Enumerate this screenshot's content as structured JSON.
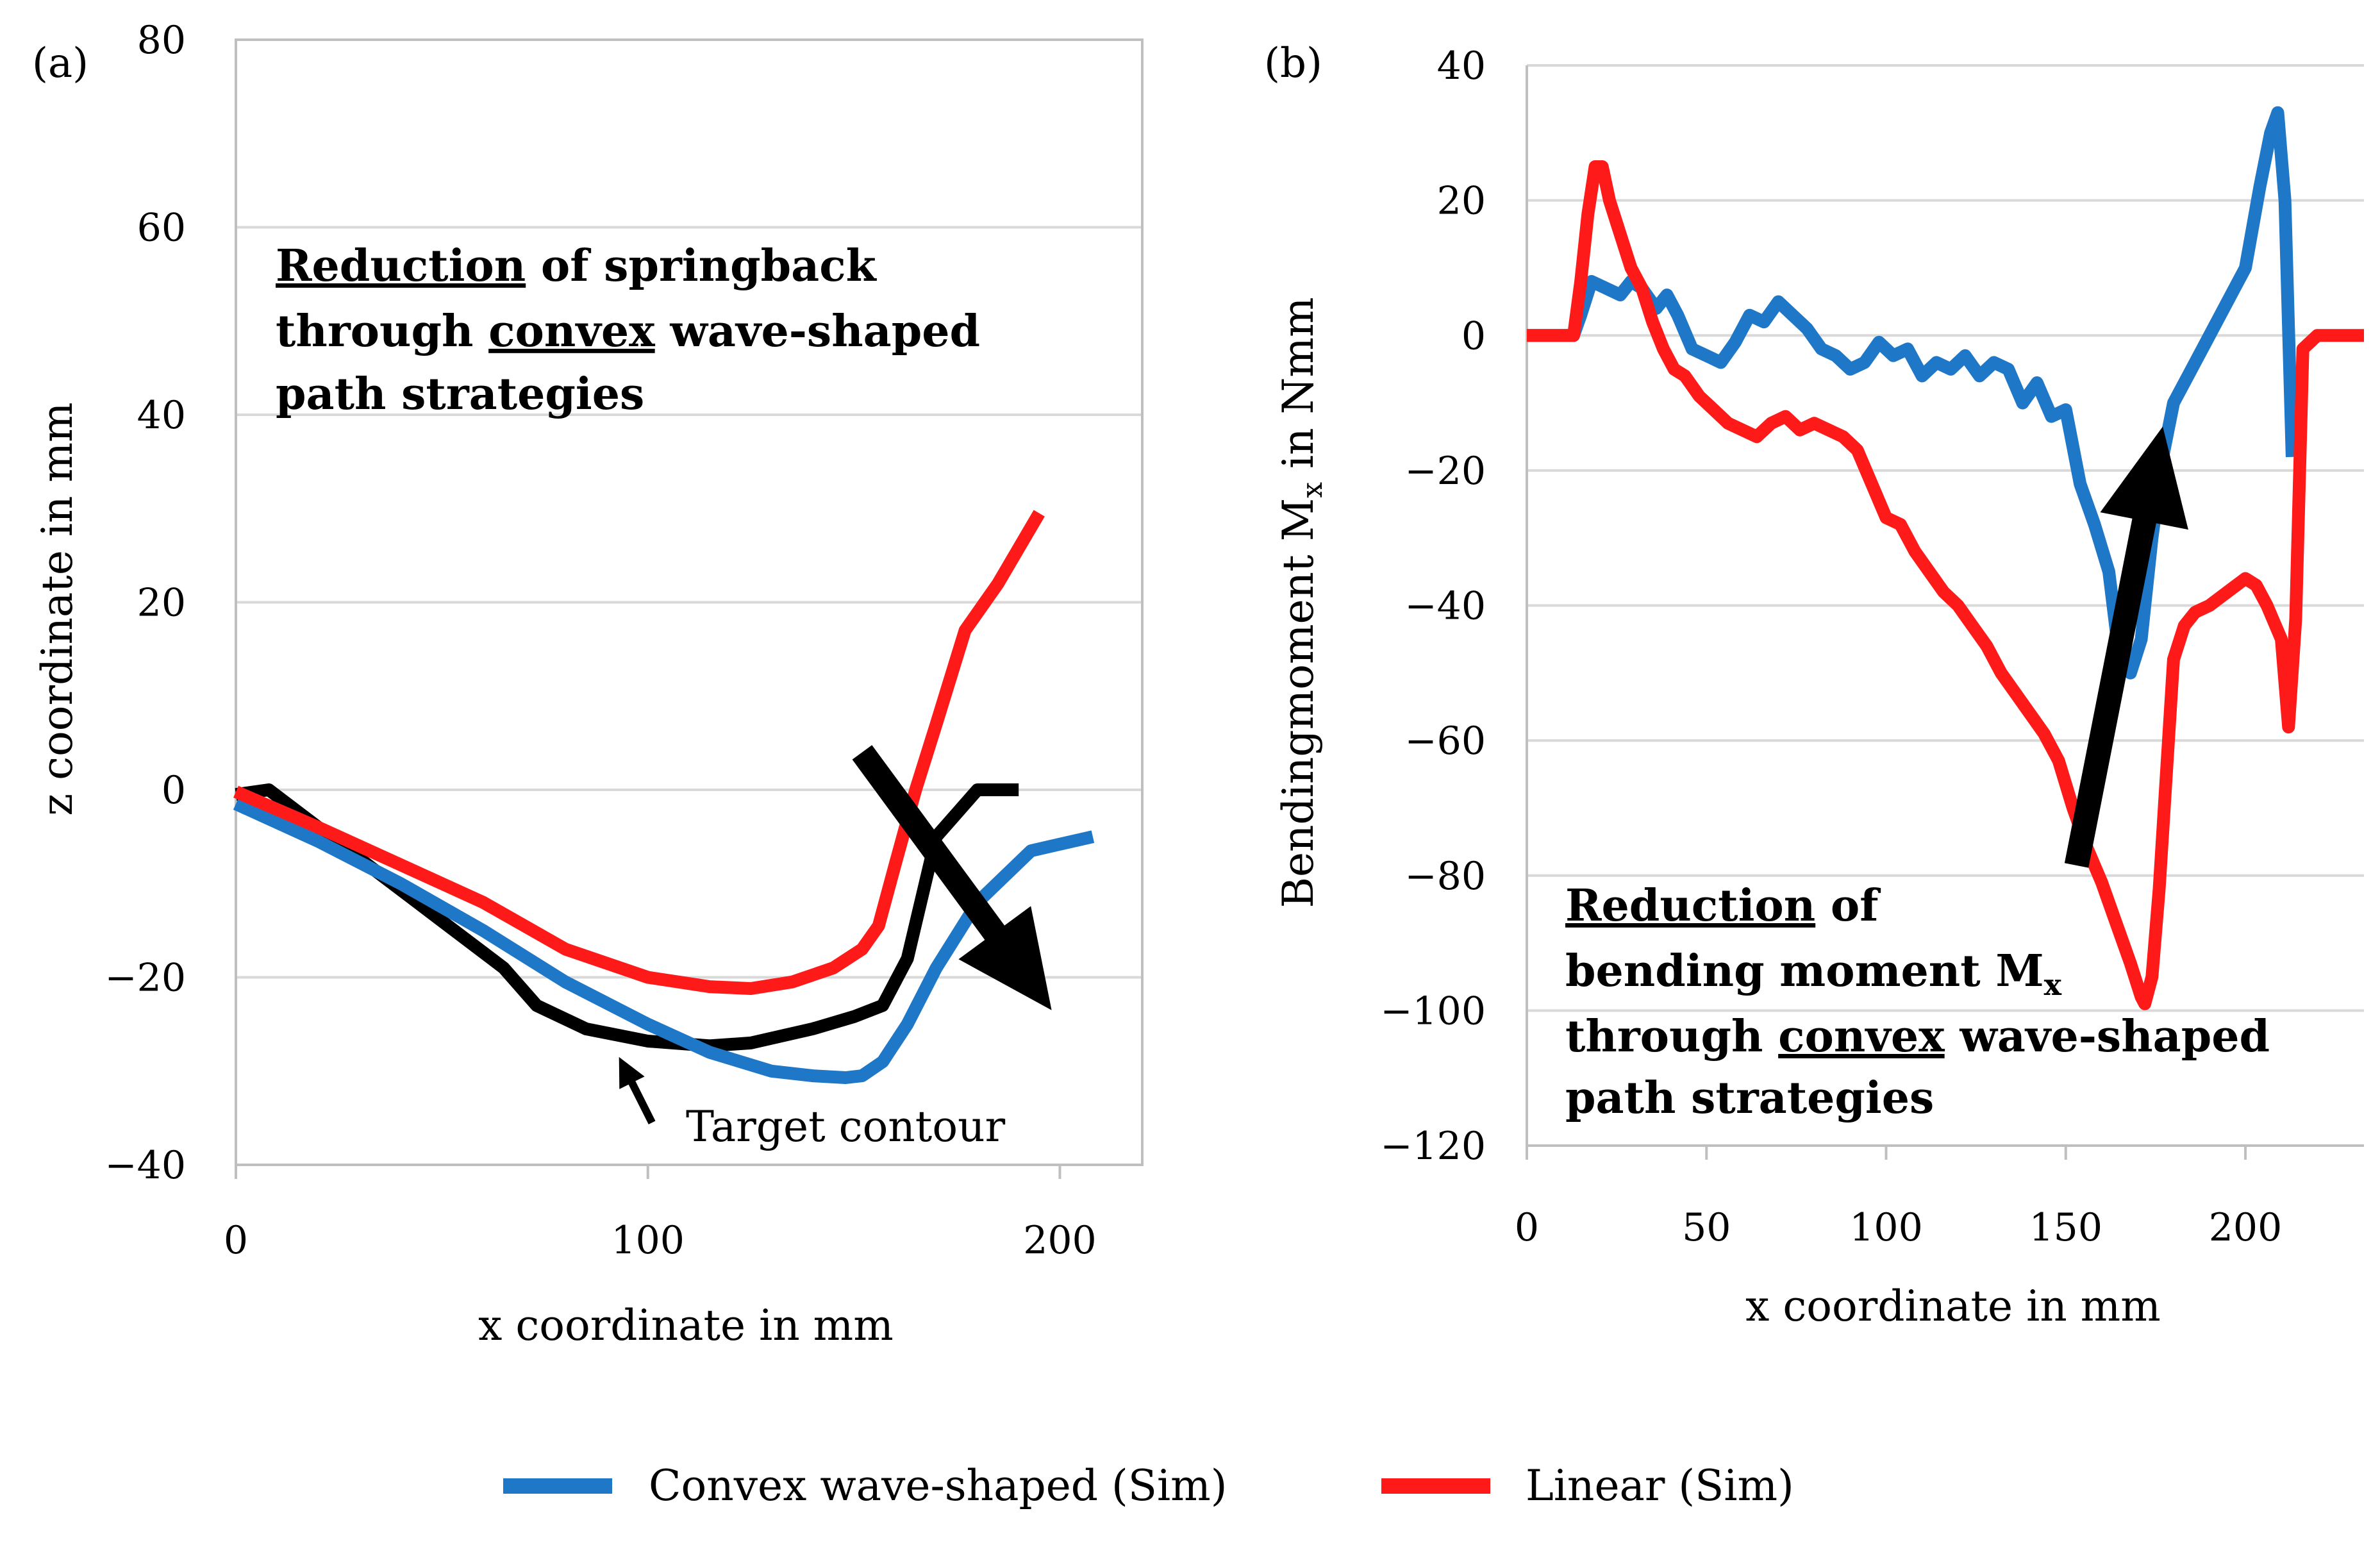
{
  "chart_data": [
    {
      "panel_label": "(a)",
      "type": "line",
      "xlabel": "x coordinate in mm",
      "ylabel": "z coordinate in mm",
      "xlim": [
        0,
        220
      ],
      "ylim": [
        -40,
        80
      ],
      "xticks": [
        0,
        100,
        200
      ],
      "yticks": [
        -40,
        -20,
        0,
        20,
        40,
        60,
        80
      ],
      "xtick_labels": [
        "0",
        "100",
        "200"
      ],
      "ytick_labels": [
        "−40",
        "−20",
        "0",
        "20",
        "40",
        "60",
        "80"
      ],
      "grid": "horizontal",
      "annotation": {
        "line1_underlined": "Reduction",
        "line1_rest": " of springback",
        "line2_prefix": "through ",
        "line2_underlined": "convex",
        "line2_rest": " wave-shaped",
        "line3": "path strategies"
      },
      "target_label": "Target contour",
      "series": [
        {
          "name": "Target contour",
          "color": "#000000",
          "x": [
            0,
            8,
            20,
            35,
            50,
            65,
            73,
            85,
            100,
            115,
            125,
            140,
            150,
            157,
            163,
            170,
            180,
            190
          ],
          "y": [
            -0.5,
            0,
            -4,
            -9,
            -14,
            -19,
            -23,
            -25.5,
            -26.8,
            -27.3,
            -27,
            -25.5,
            -24.2,
            -23,
            -18,
            -5,
            0,
            0
          ]
        },
        {
          "name": "Convex wave-shaped (Sim)",
          "color": "#1f77c8",
          "x": [
            0,
            20,
            40,
            60,
            80,
            100,
            115,
            130,
            140,
            148,
            152,
            157,
            163,
            170,
            180,
            193,
            208
          ],
          "y": [
            -1.5,
            -5.5,
            -10,
            -15,
            -20.5,
            -25,
            -28,
            -30,
            -30.5,
            -30.7,
            -30.5,
            -29,
            -25,
            -19,
            -12,
            -6.5,
            -5
          ]
        },
        {
          "name": "Linear (Sim)",
          "color": "#ff1a1a",
          "x": [
            0,
            20,
            40,
            60,
            80,
            100,
            115,
            125,
            135,
            145,
            152,
            156,
            160,
            165,
            170,
            177,
            185,
            195
          ],
          "y": [
            -0.2,
            -4,
            -8,
            -12,
            -17,
            -20,
            -21,
            -21.2,
            -20.5,
            -19,
            -17,
            -14.5,
            -8,
            0,
            7,
            17,
            22,
            29.5
          ]
        }
      ],
      "arrows": [
        {
          "from": [
            152,
            4
          ],
          "to": [
            198,
            -23.5
          ],
          "style": "big"
        },
        {
          "from": [
            101,
            -35.5
          ],
          "to": [
            93,
            -28.5
          ],
          "style": "small"
        }
      ]
    },
    {
      "panel_label": "(b)",
      "type": "line",
      "xlabel": "x coordinate in mm",
      "ylabel_main": "Bendingmoment M",
      "ylabel_sub": "x",
      "ylabel_unit": " in Nmm",
      "xlim": [
        0,
        233
      ],
      "ylim": [
        -120,
        40
      ],
      "xticks": [
        0,
        50,
        100,
        150,
        200
      ],
      "yticks": [
        -120,
        -100,
        -80,
        -60,
        -40,
        -20,
        0,
        20,
        40
      ],
      "xtick_labels": [
        "0",
        "50",
        "100",
        "150",
        "200"
      ],
      "ytick_labels": [
        "−120",
        "−100",
        "−80",
        "−60",
        "−40",
        "−20",
        "0",
        "20",
        "40"
      ],
      "grid": "horizontal",
      "annotation": {
        "line1_underlined": "Reduction",
        "line1_rest": " of",
        "line2_main": "bending moment M",
        "line2_sub": "x",
        "line3_prefix": "through ",
        "line3_underlined": "convex",
        "line3_rest": " wave-shaped",
        "line4": "path strategies"
      },
      "series": [
        {
          "name": "Convex wave-shaped (Sim)",
          "color": "#1f77c8",
          "x": [
            0,
            13,
            15,
            18,
            22,
            26,
            29,
            32,
            36,
            39,
            42,
            46,
            50,
            54,
            58,
            62,
            66,
            70,
            74,
            78,
            82,
            86,
            90,
            94,
            98,
            102,
            106,
            110,
            114,
            118,
            122,
            126,
            130,
            134,
            138,
            142,
            146,
            150,
            154,
            158,
            162,
            165,
            168,
            171,
            174,
            177,
            180,
            185,
            190,
            195,
            200,
            204,
            207,
            209,
            211,
            213
          ],
          "y": [
            0,
            0,
            3,
            8,
            7,
            6,
            8,
            7,
            4,
            6,
            3,
            -2,
            -3,
            -4,
            -1,
            3,
            2,
            5,
            3,
            1,
            -2,
            -3,
            -5,
            -4,
            -1,
            -3,
            -2,
            -6,
            -4,
            -5,
            -3,
            -6,
            -4,
            -5,
            -10,
            -7,
            -12,
            -11,
            -22,
            -28,
            -35,
            -48,
            -50,
            -45,
            -30,
            -18,
            -10,
            -5,
            0,
            5,
            10,
            22,
            30,
            33,
            20,
            -18
          ]
        },
        {
          "name": "Linear (Sim)",
          "color": "#ff1a1a",
          "x": [
            0,
            13,
            15,
            17,
            19,
            21,
            23,
            26,
            29,
            32,
            35,
            38,
            41,
            44,
            48,
            52,
            56,
            60,
            64,
            68,
            72,
            76,
            80,
            84,
            88,
            92,
            96,
            100,
            104,
            108,
            112,
            116,
            120,
            124,
            128,
            132,
            136,
            140,
            144,
            148,
            152,
            156,
            160,
            164,
            168,
            171,
            172,
            174,
            176,
            178,
            180,
            183,
            186,
            190,
            195,
            200,
            203,
            206,
            210,
            212,
            214,
            216,
            220,
            233
          ],
          "y": [
            0,
            0,
            8,
            18,
            25,
            25,
            20,
            15,
            10,
            7,
            2,
            -2,
            -5,
            -6,
            -9,
            -11,
            -13,
            -14,
            -15,
            -13,
            -12,
            -14,
            -13,
            -14,
            -15,
            -17,
            -22,
            -27,
            -28,
            -32,
            -35,
            -38,
            -40,
            -43,
            -46,
            -50,
            -53,
            -56,
            -59,
            -63,
            -70,
            -76,
            -81,
            -87,
            -93,
            -98,
            -99,
            -95,
            -82,
            -65,
            -48,
            -43,
            -41,
            -40,
            -38,
            -36,
            -37,
            -40,
            -45,
            -58,
            -42,
            -2,
            0,
            0
          ]
        }
      ],
      "arrows": [
        {
          "from": [
            153,
            -78.5
          ],
          "to": [
            177,
            -13.5
          ],
          "style": "big"
        }
      ]
    }
  ],
  "legend": [
    {
      "label": "Convex wave-shaped (Sim)",
      "color": "#1f77c8"
    },
    {
      "label": "Linear (Sim)",
      "color": "#ff1a1a"
    }
  ]
}
